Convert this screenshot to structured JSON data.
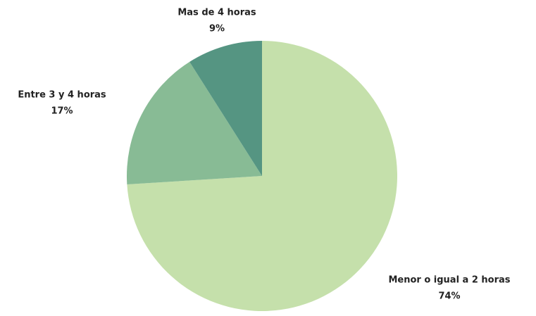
{
  "chart_data": {
    "type": "pie",
    "categories": [
      "Menor o igual a 2 horas",
      "Entre 3 y 4 horas",
      "Mas de 4 horas"
    ],
    "values": [
      74,
      17,
      9
    ],
    "value_labels": [
      "74%",
      "17%",
      "9%"
    ],
    "colors": [
      "#c5e0ab",
      "#88bb95",
      "#559582"
    ]
  }
}
